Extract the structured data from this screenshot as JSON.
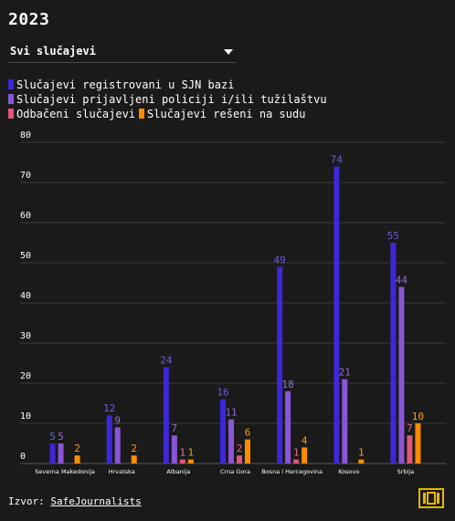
{
  "title": "2023",
  "dropdown": {
    "selected": "Svi slučajevi"
  },
  "source": {
    "label": "Izvor:",
    "link_text": "SafeJournalists"
  },
  "colors": {
    "background": "#1a1a1a",
    "grid": "#3a3a3a"
  },
  "chart_data": {
    "type": "bar",
    "categories": [
      "Severna Makedonija",
      "Hrvatska",
      "Albanija",
      "Crna Gora",
      "Bosna i Hercegovina",
      "Kosovo",
      "Srbija"
    ],
    "series": [
      {
        "name": "Slučajevi registrovani u SJN bazi",
        "color": "#3d27d6",
        "label_color": "#6a5fd8",
        "values": [
          5,
          12,
          24,
          16,
          49,
          74,
          55
        ]
      },
      {
        "name": "Slučajevi prijavljeni policiji i/ili tužilaštvu",
        "color": "#8a55d6",
        "label_color": "#9a6ad9",
        "values": [
          5,
          9,
          7,
          11,
          18,
          21,
          44
        ]
      },
      {
        "name": "Odbačeni slučajevi",
        "color": "#e05578",
        "label_color": "#e86a8a",
        "values": [
          null,
          null,
          1,
          2,
          1,
          null,
          7
        ]
      },
      {
        "name": "Slučajevi rešeni na sudu",
        "color": "#ff8c00",
        "label_color": "#ff9a1a",
        "values": [
          2,
          2,
          1,
          6,
          4,
          1,
          10
        ]
      }
    ],
    "y_ticks": [
      0,
      10,
      20,
      30,
      40,
      50,
      60,
      70,
      80
    ],
    "ylim": [
      0,
      80
    ],
    "grid": true,
    "legend_position": "top"
  }
}
